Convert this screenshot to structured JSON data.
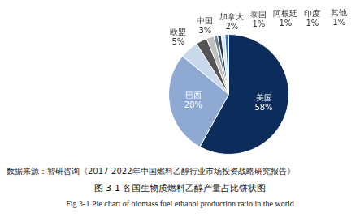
{
  "chart_data": {
    "type": "pie",
    "title": "图 3-1 各国生物质燃料乙醇产量占比饼状图",
    "subtitle": "Fig.3-1 Pie chart of biomass fuel ethanol production ratio in the world",
    "source": "数据来源：智研咨询《2017-2022年中国燃料乙醇行业市场投资战略研究报告》",
    "categories": [
      "美国",
      "巴西",
      "欧盟",
      "中国",
      "加拿大",
      "泰国",
      "阿根廷",
      "印度",
      "其他"
    ],
    "values": [
      58,
      28,
      5,
      3,
      2,
      1,
      1,
      1,
      1
    ],
    "value_labels": [
      "58%",
      "28%",
      "5%",
      "3%",
      "2%",
      "1%",
      "1%",
      "1%",
      "1%"
    ],
    "colors": [
      "#0c2c5c",
      "#8eaad3",
      "#c9d8ec",
      "#545454",
      "#bfbfbf",
      "#6e8098",
      "#2c3a4c",
      "#dce6f2",
      "#3e6fb0"
    ],
    "data_labels": true
  }
}
